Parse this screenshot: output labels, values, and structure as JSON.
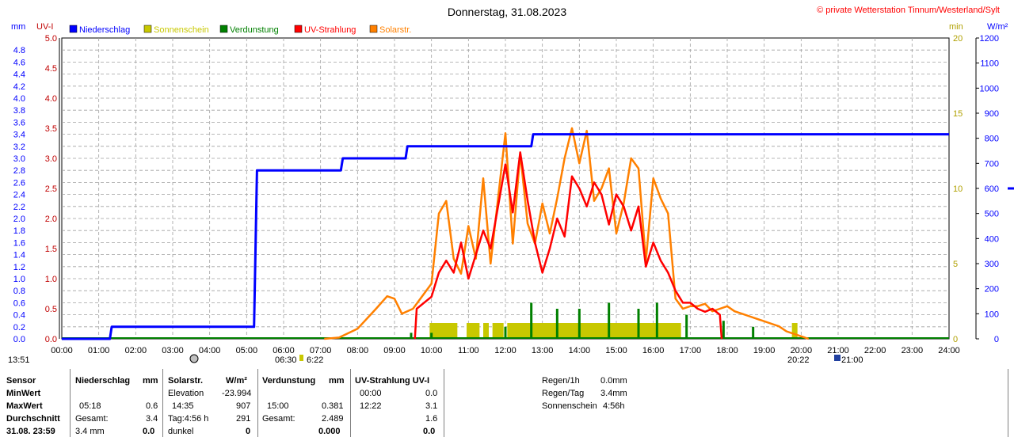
{
  "header": {
    "title": "Donnerstag, 31.08.2023",
    "copyright": "© private Wetterstation Tinnum/Westerland/Sylt"
  },
  "chart_data": {
    "type": "line",
    "title": "Donnerstag, 31.08.2023",
    "axes": {
      "left_units": [
        "mm",
        "UV-I"
      ],
      "right_units": [
        "min",
        "W/m²"
      ],
      "left_ticks_mm": [
        "4.8",
        "4.6",
        "4.4",
        "4.2",
        "4.0",
        "3.8",
        "3.6",
        "3.4",
        "3.2",
        "3.0",
        "2.8",
        "2.6",
        "2.4",
        "2.2",
        "2.0",
        "1.8",
        "1.6",
        "1.4",
        "1.2",
        "1.0",
        "0.8",
        "0.6",
        "0.4",
        "0.2",
        "0.0"
      ],
      "left_ticks_uv": [
        "5.0",
        "4.5",
        "4.0",
        "3.5",
        "3.0",
        "2.5",
        "2.0",
        "1.5",
        "1.0",
        "0.5",
        "0.0"
      ],
      "right_ticks_min": [
        "20",
        "15",
        "10",
        "5",
        "0"
      ],
      "right_ticks_wm2": [
        "1200",
        "1100",
        "1000",
        "900",
        "800",
        "700",
        "600",
        "500",
        "400",
        "300",
        "200",
        "100",
        "0"
      ],
      "x_ticks": [
        "00:00",
        "01:00",
        "02:00",
        "03:00",
        "04:00",
        "05:00",
        "06:00",
        "07:00",
        "08:00",
        "09:00",
        "10:00",
        "11:00",
        "12:00",
        "13:00",
        "14:00",
        "15:00",
        "16:00",
        "17:00",
        "18:00",
        "19:00",
        "20:00",
        "21:00",
        "22:00",
        "23:00",
        "24:00"
      ],
      "xlim": [
        0,
        24
      ],
      "ylim_mm": [
        0,
        5
      ],
      "ylim_uv": [
        0,
        5
      ],
      "ylim_min": [
        0,
        20
      ],
      "ylim_wm2": [
        0,
        1200
      ]
    },
    "legend": {
      "placement": "top-left",
      "items": [
        {
          "label": "Niederschlag",
          "color": "#0000ff"
        },
        {
          "label": "Sonnenschein",
          "color": "#c8c800"
        },
        {
          "label": "Verdunstung",
          "color": "#008000"
        },
        {
          "label": "UV-Strahlung",
          "color": "#ff0000"
        },
        {
          "label": "Solarstr.",
          "color": "#ff8000"
        }
      ]
    },
    "colors": {
      "niederschlag": "#0000ff",
      "sonnenschein": "#c8c800",
      "verdunstung": "#008000",
      "uv": "#ff0000",
      "solar": "#ff8000",
      "uv_axis": "#c00000",
      "min_axis": "#b0a000",
      "grid": "#a0a0a0"
    },
    "series": {
      "niederschlag_mm": [
        [
          0,
          0
        ],
        [
          1.3,
          0
        ],
        [
          1.35,
          0.2
        ],
        [
          5.2,
          0.2
        ],
        [
          5.28,
          2.8
        ],
        [
          7.55,
          2.8
        ],
        [
          7.6,
          3.0
        ],
        [
          9.3,
          3.0
        ],
        [
          9.35,
          3.2
        ],
        [
          12.7,
          3.2
        ],
        [
          12.75,
          3.4
        ],
        [
          24,
          3.4
        ]
      ],
      "uv_index": [
        [
          9.55,
          0
        ],
        [
          9.6,
          0.5
        ],
        [
          10.0,
          0.7
        ],
        [
          10.2,
          1.1
        ],
        [
          10.4,
          1.3
        ],
        [
          10.6,
          1.1
        ],
        [
          10.8,
          1.6
        ],
        [
          11.0,
          1.0
        ],
        [
          11.2,
          1.4
        ],
        [
          11.4,
          1.8
        ],
        [
          11.6,
          1.5
        ],
        [
          11.8,
          2.2
        ],
        [
          12.0,
          2.9
        ],
        [
          12.2,
          2.1
        ],
        [
          12.4,
          3.1
        ],
        [
          12.6,
          2.3
        ],
        [
          12.8,
          1.6
        ],
        [
          13.0,
          1.1
        ],
        [
          13.2,
          1.5
        ],
        [
          13.4,
          2.0
        ],
        [
          13.6,
          1.7
        ],
        [
          13.8,
          2.7
        ],
        [
          14.0,
          2.5
        ],
        [
          14.2,
          2.2
        ],
        [
          14.4,
          2.6
        ],
        [
          14.6,
          2.4
        ],
        [
          14.8,
          1.9
        ],
        [
          15.0,
          2.4
        ],
        [
          15.2,
          2.2
        ],
        [
          15.4,
          1.8
        ],
        [
          15.6,
          2.2
        ],
        [
          15.8,
          1.2
        ],
        [
          16.0,
          1.6
        ],
        [
          16.2,
          1.3
        ],
        [
          16.4,
          1.1
        ],
        [
          16.6,
          0.8
        ],
        [
          16.8,
          0.6
        ],
        [
          17.0,
          0.6
        ],
        [
          17.2,
          0.5
        ],
        [
          17.4,
          0.45
        ],
        [
          17.6,
          0.5
        ],
        [
          17.8,
          0.4
        ],
        [
          17.85,
          0
        ]
      ],
      "solar_wm2": [
        [
          7.1,
          0
        ],
        [
          7.5,
          5
        ],
        [
          8.0,
          40
        ],
        [
          8.5,
          120
        ],
        [
          8.8,
          170
        ],
        [
          9.0,
          160
        ],
        [
          9.2,
          100
        ],
        [
          9.5,
          120
        ],
        [
          9.8,
          180
        ],
        [
          10.0,
          220
        ],
        [
          10.2,
          500
        ],
        [
          10.4,
          550
        ],
        [
          10.6,
          320
        ],
        [
          10.8,
          260
        ],
        [
          11.0,
          450
        ],
        [
          11.2,
          320
        ],
        [
          11.4,
          640
        ],
        [
          11.6,
          300
        ],
        [
          11.8,
          560
        ],
        [
          12.0,
          820
        ],
        [
          12.2,
          380
        ],
        [
          12.4,
          740
        ],
        [
          12.6,
          460
        ],
        [
          12.8,
          380
        ],
        [
          13.0,
          540
        ],
        [
          13.2,
          420
        ],
        [
          13.4,
          560
        ],
        [
          13.6,
          720
        ],
        [
          13.8,
          840
        ],
        [
          14.0,
          700
        ],
        [
          14.2,
          830
        ],
        [
          14.4,
          550
        ],
        [
          14.6,
          600
        ],
        [
          14.8,
          680
        ],
        [
          15.0,
          420
        ],
        [
          15.2,
          540
        ],
        [
          15.4,
          720
        ],
        [
          15.6,
          680
        ],
        [
          15.8,
          310
        ],
        [
          16.0,
          640
        ],
        [
          16.2,
          560
        ],
        [
          16.4,
          500
        ],
        [
          16.6,
          160
        ],
        [
          16.8,
          120
        ],
        [
          17.0,
          130
        ],
        [
          17.2,
          130
        ],
        [
          17.4,
          140
        ],
        [
          17.6,
          110
        ],
        [
          17.8,
          120
        ],
        [
          18.0,
          130
        ],
        [
          18.2,
          110
        ],
        [
          18.4,
          100
        ],
        [
          18.6,
          90
        ],
        [
          18.8,
          80
        ],
        [
          19.0,
          70
        ],
        [
          19.2,
          60
        ],
        [
          19.4,
          50
        ],
        [
          19.6,
          30
        ],
        [
          19.8,
          20
        ],
        [
          20.0,
          10
        ],
        [
          20.2,
          0
        ]
      ],
      "sonnenschein_blocks": [
        [
          9.95,
          10.7
        ],
        [
          10.95,
          11.3
        ],
        [
          11.4,
          11.55
        ],
        [
          11.65,
          11.95
        ],
        [
          12.05,
          16.75
        ],
        [
          19.75,
          19.9
        ]
      ],
      "verdunstung_spikes": [
        [
          9.45,
          0.1
        ],
        [
          10.0,
          0.1
        ],
        [
          12.0,
          0.2
        ],
        [
          12.7,
          0.6
        ],
        [
          13.4,
          0.5
        ],
        [
          14.0,
          0.5
        ],
        [
          14.8,
          0.6
        ],
        [
          15.6,
          0.5
        ],
        [
          16.1,
          0.6
        ],
        [
          16.9,
          0.4
        ],
        [
          17.9,
          0.3
        ],
        [
          18.7,
          0.2
        ]
      ]
    },
    "markers": {
      "left_time": "13:51",
      "dawn_times": "06:30",
      "dawn_times2": "6:22",
      "dusk_time": "20:22",
      "dusk_time2": "21:00"
    }
  },
  "stats": {
    "col1": {
      "h0": "Sensor",
      "h1": "MinWert",
      "h2": "MaxWert",
      "h3": "Durchschnitt",
      "h4": "31.08. 23:59"
    },
    "col2": {
      "title": "Niederschlag",
      "unit": "mm",
      "r2a": "05:18",
      "r2b": "0.6",
      "r3a": "Gesamt:",
      "r3b": "3.4",
      "r4a": "3.4 mm",
      "r4b": "0.0"
    },
    "col3": {
      "title": "Solarstr.",
      "unit": "W/m²",
      "r1a": "Elevation",
      "r1b": "-23.994",
      "r2a": "14:35",
      "r2b": "907",
      "r3a": "Tag:4:56 h",
      "r3b": "291",
      "r4a": "dunkel",
      "r4b": "0"
    },
    "col4": {
      "title": "Verdunstung",
      "unit": "mm",
      "r2a": "15:00",
      "r2b": "0.381",
      "r3a": "Gesamt:",
      "r3b": "2.489",
      "r4b": "0.000"
    },
    "col5": {
      "title": "UV-Strahlung UV-I",
      "r1a": "00:00",
      "r1b": "0.0",
      "r2a": "12:22",
      "r2b": "3.1",
      "r3b": "1.6",
      "r4b": "0.0"
    },
    "col6": {
      "r0a": "Regen/1h",
      "r0b": "0.0mm",
      "r1a": "Regen/Tag",
      "r1b": "3.4mm",
      "r2a": "Sonnenschein",
      "r2b": "4:56h"
    }
  }
}
